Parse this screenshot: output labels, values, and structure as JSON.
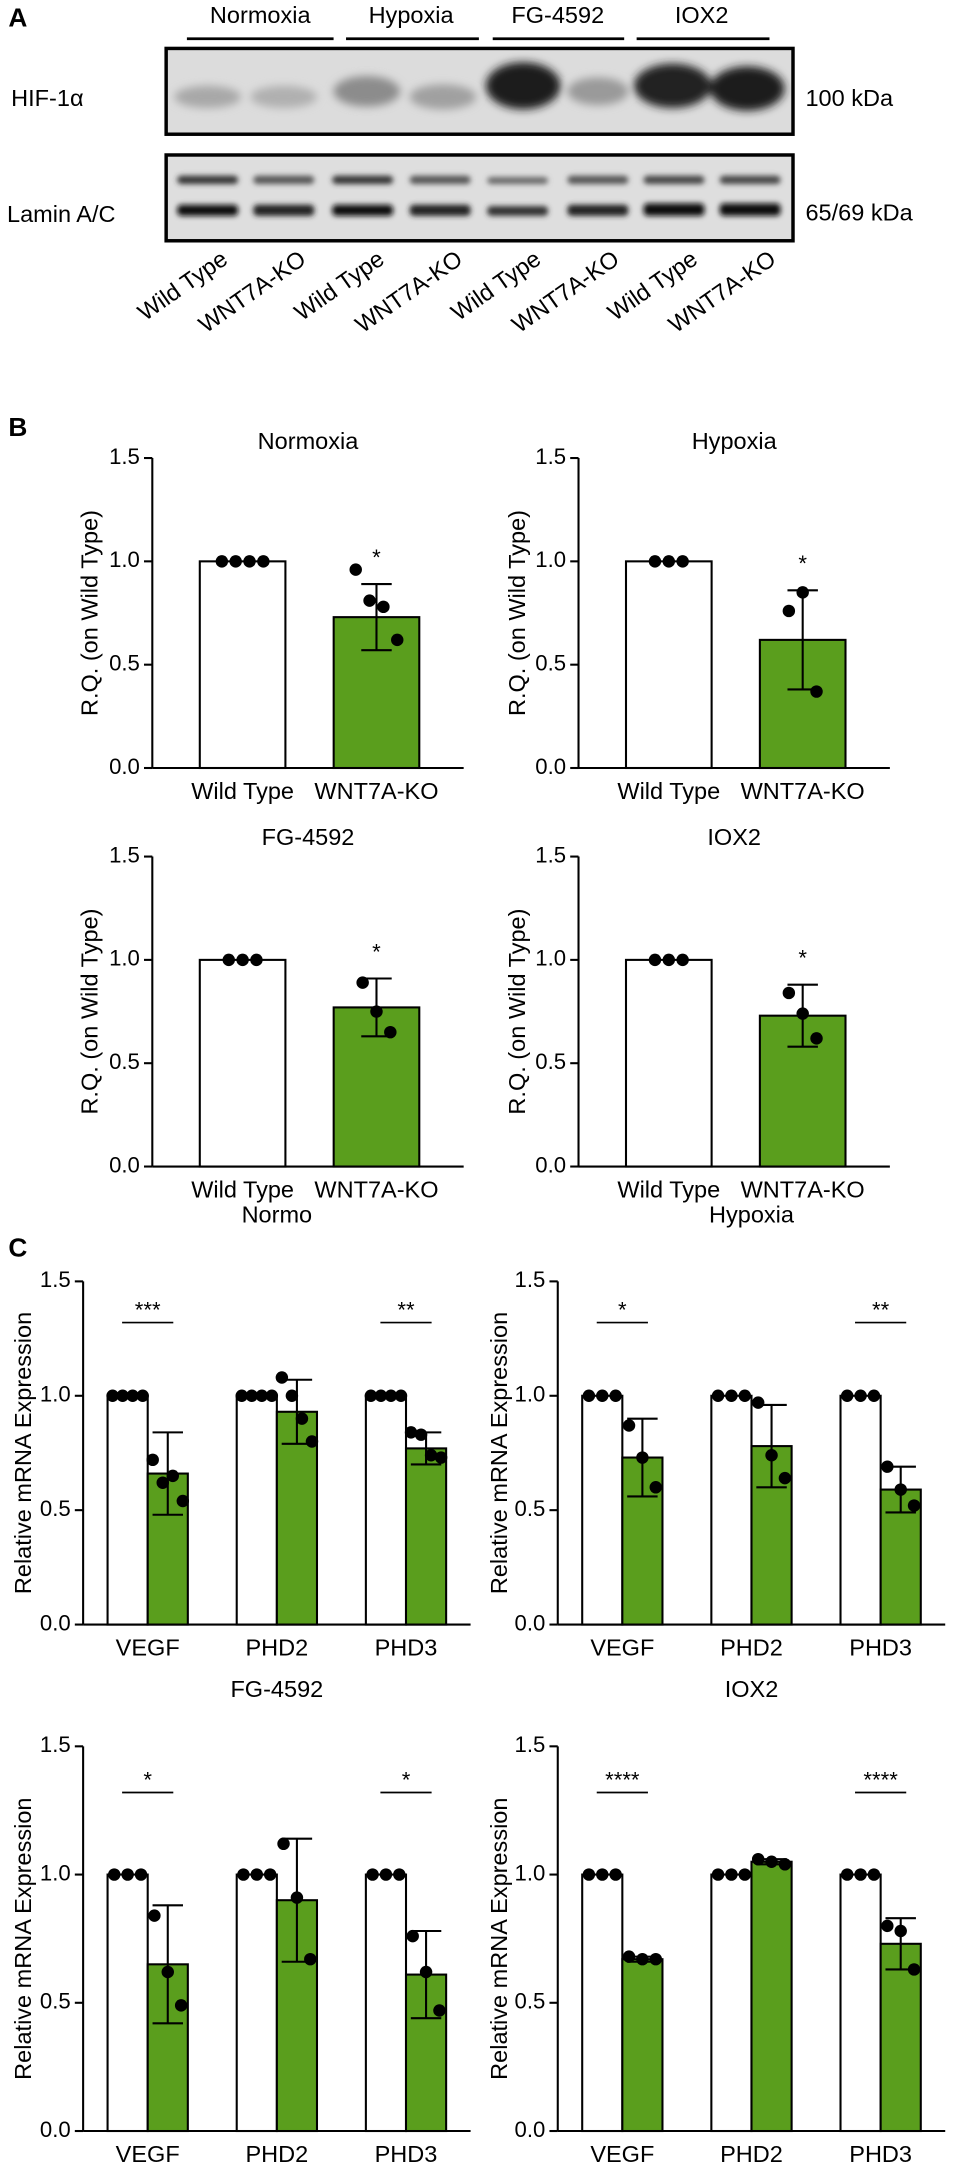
{
  "panel_labels": [
    "A",
    "B",
    "C"
  ],
  "blot": {
    "groups": [
      "Normoxia",
      "Hypoxia",
      "FG-4592",
      "IOX2"
    ],
    "rows": [
      {
        "label": "HIF-1α",
        "size": "100 kDa"
      },
      {
        "label": "Lamin A/C",
        "size": "65/69 kDa"
      }
    ],
    "lanes": [
      "Wild Type",
      "WNT7A-KO",
      "Wild Type",
      "WNT7A-KO",
      "Wild Type",
      "WNT7A-KO",
      "Wild Type",
      "WNT7A-KO"
    ]
  },
  "chart_data": [
    {
      "type": "bar",
      "title": "Normoxia",
      "y_label": "R.Q. (on Wild Type)",
      "categories": [
        "Wild Type",
        "WNT7A-KO"
      ],
      "colors": [
        "#ffffff",
        "#5a9e1d"
      ],
      "values": [
        1,
        0.73
      ],
      "errors": [
        null,
        0.16
      ],
      "points": [
        [
          1,
          1,
          1,
          1
        ],
        [
          0.96,
          0.81,
          0.78,
          0.62
        ]
      ],
      "annotations": [
        null,
        "*"
      ],
      "ylim": [
        0,
        1.5
      ],
      "yticks": [
        {
          "value": 0,
          "label": "0.0"
        },
        0.5,
        {
          "value": 1,
          "label": "1.0"
        },
        1.5
      ]
    },
    {
      "type": "bar",
      "title": "Hypoxia",
      "y_label": "R.Q. (on Wild Type)",
      "categories": [
        "Wild Type",
        "WNT7A-KO"
      ],
      "colors": [
        "#ffffff",
        "#5a9e1d"
      ],
      "values": [
        1,
        0.62
      ],
      "errors": [
        null,
        0.24
      ],
      "points": [
        [
          1,
          1,
          1
        ],
        [
          0.76,
          0.85,
          0.37
        ]
      ],
      "annotations": [
        null,
        "*"
      ],
      "ylim": [
        0,
        1.5
      ],
      "yticks": [
        {
          "value": 0,
          "label": "0.0"
        },
        0.5,
        {
          "value": 1,
          "label": "1.0"
        },
        1.5
      ]
    },
    {
      "type": "bar",
      "title": "FG-4592",
      "y_label": "R.Q. (on Wild Type)",
      "categories": [
        "Wild Type",
        "WNT7A-KO"
      ],
      "colors": [
        "#ffffff",
        "#5a9e1d"
      ],
      "values": [
        1,
        0.77
      ],
      "errors": [
        null,
        0.14
      ],
      "points": [
        [
          1,
          1,
          1
        ],
        [
          0.89,
          0.75,
          0.65
        ]
      ],
      "annotations": [
        null,
        "*"
      ],
      "ylim": [
        0,
        1.5
      ],
      "yticks": [
        {
          "value": 0,
          "label": "0.0"
        },
        0.5,
        {
          "value": 1,
          "label": "1.0"
        },
        1.5
      ]
    },
    {
      "type": "bar",
      "title": "IOX2",
      "y_label": "R.Q. (on Wild Type)",
      "categories": [
        "Wild Type",
        "WNT7A-KO"
      ],
      "colors": [
        "#ffffff",
        "#5a9e1d"
      ],
      "values": [
        1,
        0.73
      ],
      "errors": [
        null,
        0.15
      ],
      "points": [
        [
          1,
          1,
          1
        ],
        [
          0.84,
          0.74,
          0.62
        ]
      ],
      "annotations": [
        null,
        "*"
      ],
      "ylim": [
        0,
        1.5
      ],
      "yticks": [
        {
          "value": 0,
          "label": "0.0"
        },
        0.5,
        {
          "value": 1,
          "label": "1.0"
        },
        1.5
      ]
    },
    {
      "type": "bar",
      "title": "Normo",
      "y_label": "Relative mRNA Expression",
      "categories": [
        "VEGF",
        "PHD2",
        "PHD3"
      ],
      "series": [
        {
          "color": "#ffffff",
          "values": [
            1,
            1,
            1
          ],
          "points": [
            [
              1,
              1,
              1,
              1
            ],
            [
              1,
              1,
              1,
              1
            ],
            [
              1,
              1,
              1,
              1
            ]
          ]
        },
        {
          "color": "#5a9e1d",
          "values": [
            0.66,
            0.93,
            0.77
          ],
          "errors": [
            0.18,
            0.14,
            0.07
          ],
          "points": [
            [
              0.72,
              0.62,
              0.65,
              0.54
            ],
            [
              1.08,
              1.0,
              0.9,
              0.8
            ],
            [
              0.84,
              0.83,
              0.74,
              0.73
            ]
          ]
        }
      ],
      "annotations": [
        "***",
        null,
        "**"
      ],
      "ylim": [
        0,
        1.5
      ],
      "yticks": [
        {
          "value": 0,
          "label": "0.0"
        },
        0.5,
        {
          "value": 1,
          "label": "1.0"
        },
        1.5
      ]
    },
    {
      "type": "bar",
      "title": "Hypoxia",
      "y_label": "Relative mRNA Expression",
      "categories": [
        "VEGF",
        "PHD2",
        "PHD3"
      ],
      "series": [
        {
          "color": "#ffffff",
          "values": [
            1,
            1,
            1
          ],
          "points": [
            [
              1,
              1,
              1
            ],
            [
              1,
              1,
              1
            ],
            [
              1,
              1,
              1
            ]
          ]
        },
        {
          "color": "#5a9e1d",
          "values": [
            0.73,
            0.78,
            0.59
          ],
          "errors": [
            0.17,
            0.18,
            0.1
          ],
          "points": [
            [
              0.87,
              0.73,
              0.6
            ],
            [
              0.97,
              0.74,
              0.64
            ],
            [
              0.69,
              0.59,
              0.52
            ]
          ]
        }
      ],
      "annotations": [
        "*",
        null,
        "**"
      ],
      "ylim": [
        0,
        1.5
      ],
      "yticks": [
        {
          "value": 0,
          "label": "0.0"
        },
        0.5,
        {
          "value": 1,
          "label": "1.0"
        },
        1.5
      ]
    },
    {
      "type": "bar",
      "title": "FG-4592",
      "y_label": "Relative mRNA Expression",
      "categories": [
        "VEGF",
        "PHD2",
        "PHD3"
      ],
      "series": [
        {
          "color": "#ffffff",
          "values": [
            1,
            1,
            1
          ],
          "points": [
            [
              1,
              1,
              1
            ],
            [
              1,
              1,
              1
            ],
            [
              1,
              1,
              1
            ]
          ]
        },
        {
          "color": "#5a9e1d",
          "values": [
            0.65,
            0.9,
            0.61
          ],
          "errors": [
            0.23,
            0.24,
            0.17
          ],
          "points": [
            [
              0.84,
              0.62,
              0.49
            ],
            [
              1.12,
              0.91,
              0.67
            ],
            [
              0.76,
              0.62,
              0.47
            ]
          ]
        }
      ],
      "annotations": [
        "*",
        null,
        "*"
      ],
      "ylim": [
        0,
        1.5
      ],
      "yticks": [
        {
          "value": 0,
          "label": "0.0"
        },
        0.5,
        {
          "value": 1,
          "label": "1.0"
        },
        1.5
      ]
    },
    {
      "type": "bar",
      "title": "IOX2",
      "y_label": "Relative mRNA Expression",
      "categories": [
        "VEGF",
        "PHD2",
        "PHD3"
      ],
      "series": [
        {
          "color": "#ffffff",
          "values": [
            1,
            1,
            1
          ],
          "points": [
            [
              1,
              1,
              1
            ],
            [
              1,
              1,
              1
            ],
            [
              1,
              1,
              1
            ]
          ]
        },
        {
          "color": "#5a9e1d",
          "values": [
            0.67,
            1.05,
            0.73
          ],
          "errors": [
            0.01,
            0.01,
            0.1
          ],
          "points": [
            [
              0.68,
              0.67,
              0.67
            ],
            [
              1.06,
              1.05,
              1.04
            ],
            [
              0.8,
              0.78,
              0.63
            ]
          ]
        }
      ],
      "annotations": [
        "****",
        null,
        "****"
      ],
      "ylim": [
        0,
        1.5
      ],
      "yticks": [
        {
          "value": 0,
          "label": "0.0"
        },
        0.5,
        {
          "value": 1,
          "label": "1.0"
        },
        1.5
      ]
    }
  ]
}
